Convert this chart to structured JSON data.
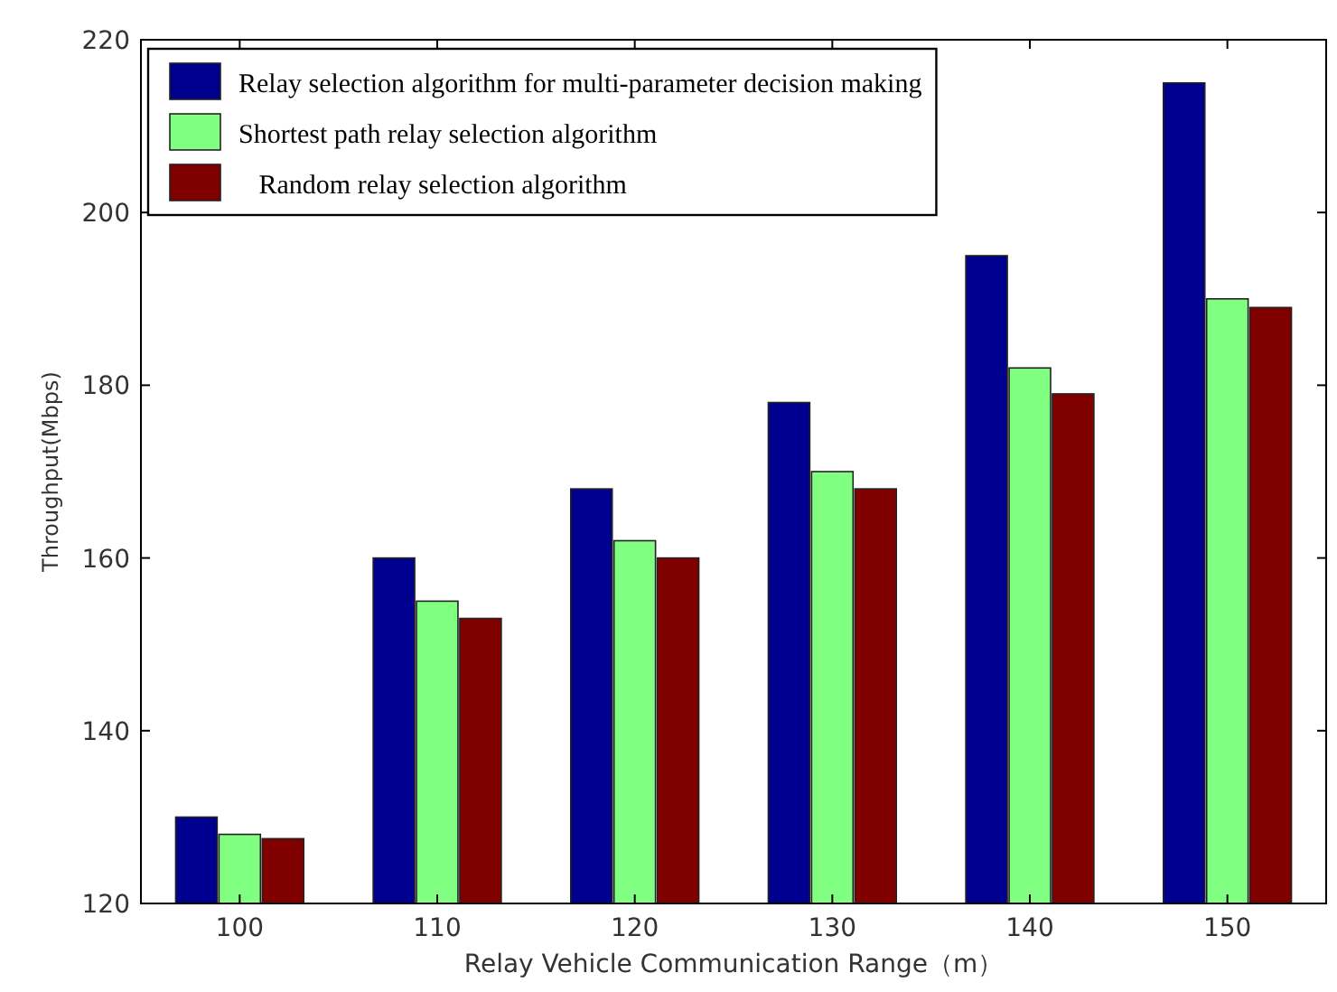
{
  "chart_data": {
    "type": "bar",
    "xlabel": "Relay Vehicle Communication Range（m）",
    "ylabel": "Throughput(Mbps)",
    "categories": [
      "100",
      "110",
      "120",
      "130",
      "140",
      "150"
    ],
    "series": [
      {
        "name": "Relay selection algorithm for multi-parameter decision making",
        "color": "#00008f",
        "values": [
          130,
          160,
          168,
          178,
          195,
          215
        ]
      },
      {
        "name": "Shortest path relay selection algorithm",
        "color": "#80ff80",
        "values": [
          128,
          155,
          162,
          170,
          182,
          190
        ]
      },
      {
        "name": "   Random relay selection algorithm",
        "color": "#800000",
        "values": [
          127.5,
          153,
          160,
          168,
          179,
          189
        ]
      }
    ],
    "ylim": [
      120,
      220
    ],
    "yticks": [
      120,
      140,
      160,
      180,
      200,
      220
    ],
    "grid": false,
    "legend": "top left"
  }
}
